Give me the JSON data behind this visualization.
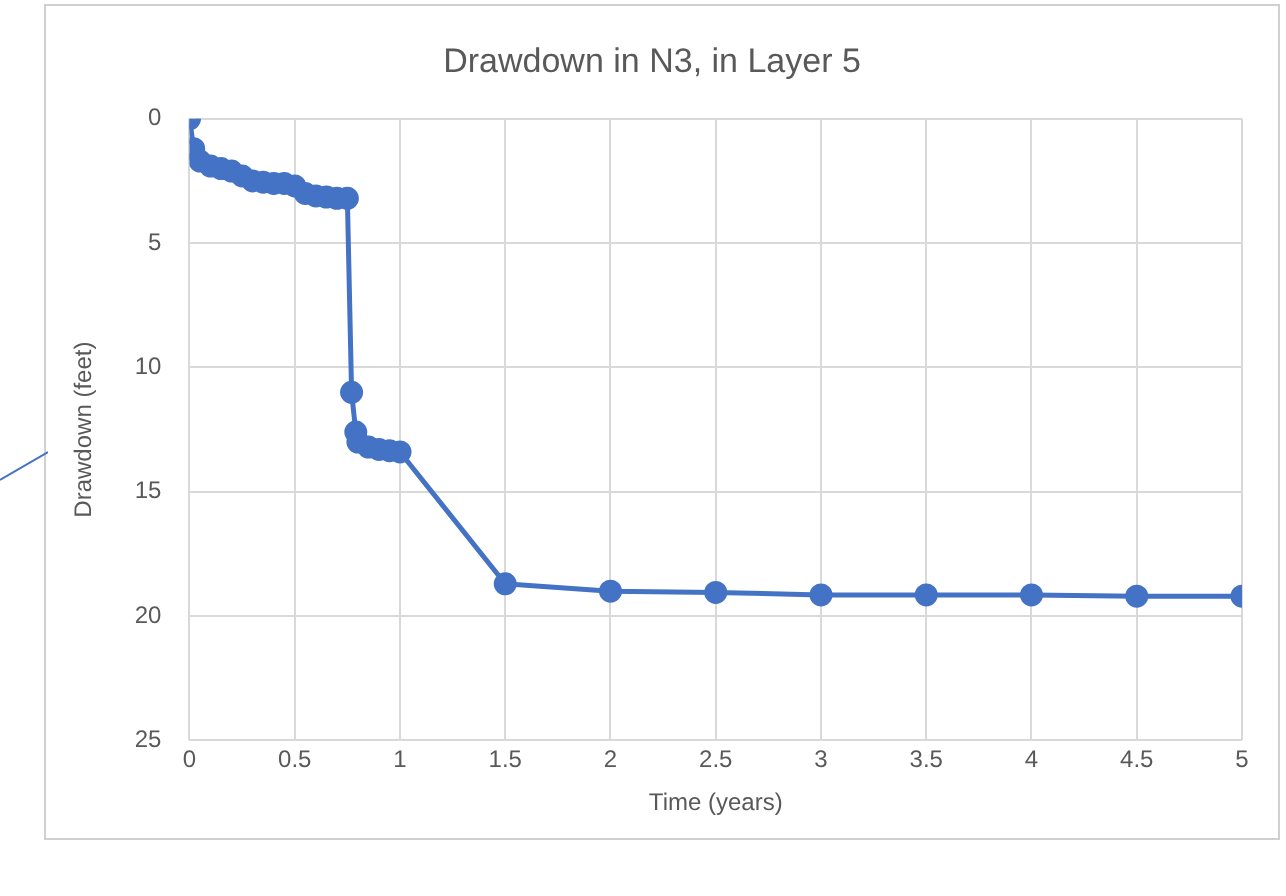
{
  "chart_data": {
    "type": "line",
    "title": "Drawdown in N3, in Layer 5",
    "xlabel": "Time (years)",
    "ylabel": "Drawdown (feet)",
    "x": [
      0,
      0.02,
      0.05,
      0.1,
      0.15,
      0.2,
      0.25,
      0.3,
      0.35,
      0.4,
      0.45,
      0.5,
      0.55,
      0.6,
      0.65,
      0.7,
      0.75,
      0.77,
      0.79,
      0.8,
      0.85,
      0.9,
      0.95,
      1,
      1.5,
      2,
      2.5,
      3,
      3.5,
      4,
      4.5,
      5
    ],
    "series": [
      {
        "color": "#4472c4",
        "values": [
          0,
          1.2,
          1.7,
          1.9,
          2.0,
          2.1,
          2.3,
          2.5,
          2.55,
          2.6,
          2.6,
          2.7,
          3.0,
          3.1,
          3.15,
          3.2,
          3.2,
          11.0,
          12.6,
          13.0,
          13.2,
          13.3,
          13.35,
          13.4,
          18.7,
          19.0,
          19.05,
          19.15,
          19.15,
          19.15,
          19.2,
          19.2
        ]
      }
    ],
    "xlim": [
      0,
      5
    ],
    "xticks": [
      0,
      0.5,
      1,
      1.5,
      2,
      2.5,
      3,
      3.5,
      4,
      4.5,
      5
    ],
    "ylim": [
      25,
      0
    ],
    "yticks": [
      0,
      5,
      10,
      15,
      20,
      25
    ],
    "grid": true,
    "legend": false,
    "marker": "circle",
    "line_style": "solid"
  }
}
